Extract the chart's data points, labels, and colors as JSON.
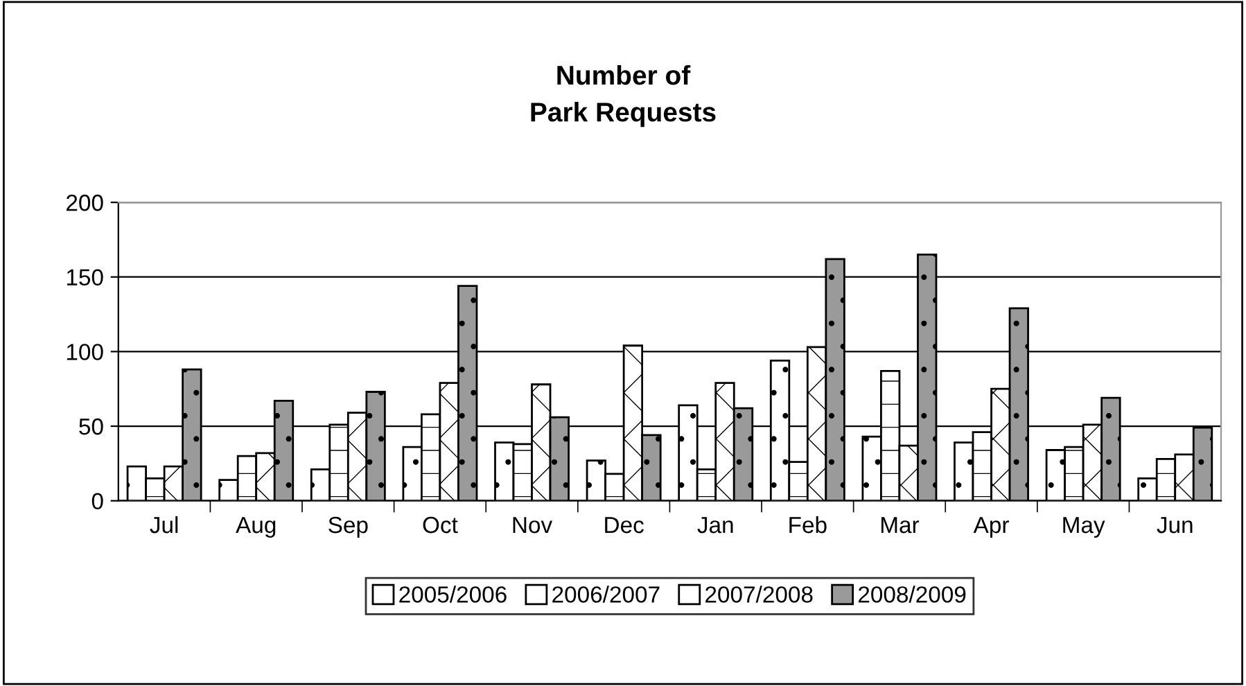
{
  "chart_data": {
    "type": "bar",
    "title": "Number of\nPark Requests",
    "categories": [
      "Jul",
      "Aug",
      "Sep",
      "Oct",
      "Nov",
      "Dec",
      "Jan",
      "Feb",
      "Mar",
      "Apr",
      "May",
      "Jun"
    ],
    "series": [
      {
        "name": "2005/2006",
        "color": "#ffffff",
        "values": [
          23,
          14,
          21,
          36,
          39,
          27,
          64,
          94,
          43,
          39,
          34,
          15
        ]
      },
      {
        "name": "2006/2007",
        "color": "#ffffff",
        "values": [
          15,
          30,
          51,
          58,
          38,
          18,
          21,
          26,
          87,
          46,
          36,
          28
        ]
      },
      {
        "name": "2007/2008",
        "color": "#ffffff",
        "values": [
          23,
          32,
          59,
          79,
          78,
          104,
          79,
          103,
          37,
          75,
          51,
          31
        ]
      },
      {
        "name": "2008/2009",
        "color": "#9a9a9a",
        "values": [
          88,
          67,
          73,
          144,
          56,
          44,
          62,
          162,
          165,
          129,
          69,
          49
        ]
      }
    ],
    "ylim": [
      0,
      200
    ],
    "yticks": [
      0,
      50,
      100,
      150,
      200
    ],
    "grid": "y",
    "legend": "bottom"
  }
}
